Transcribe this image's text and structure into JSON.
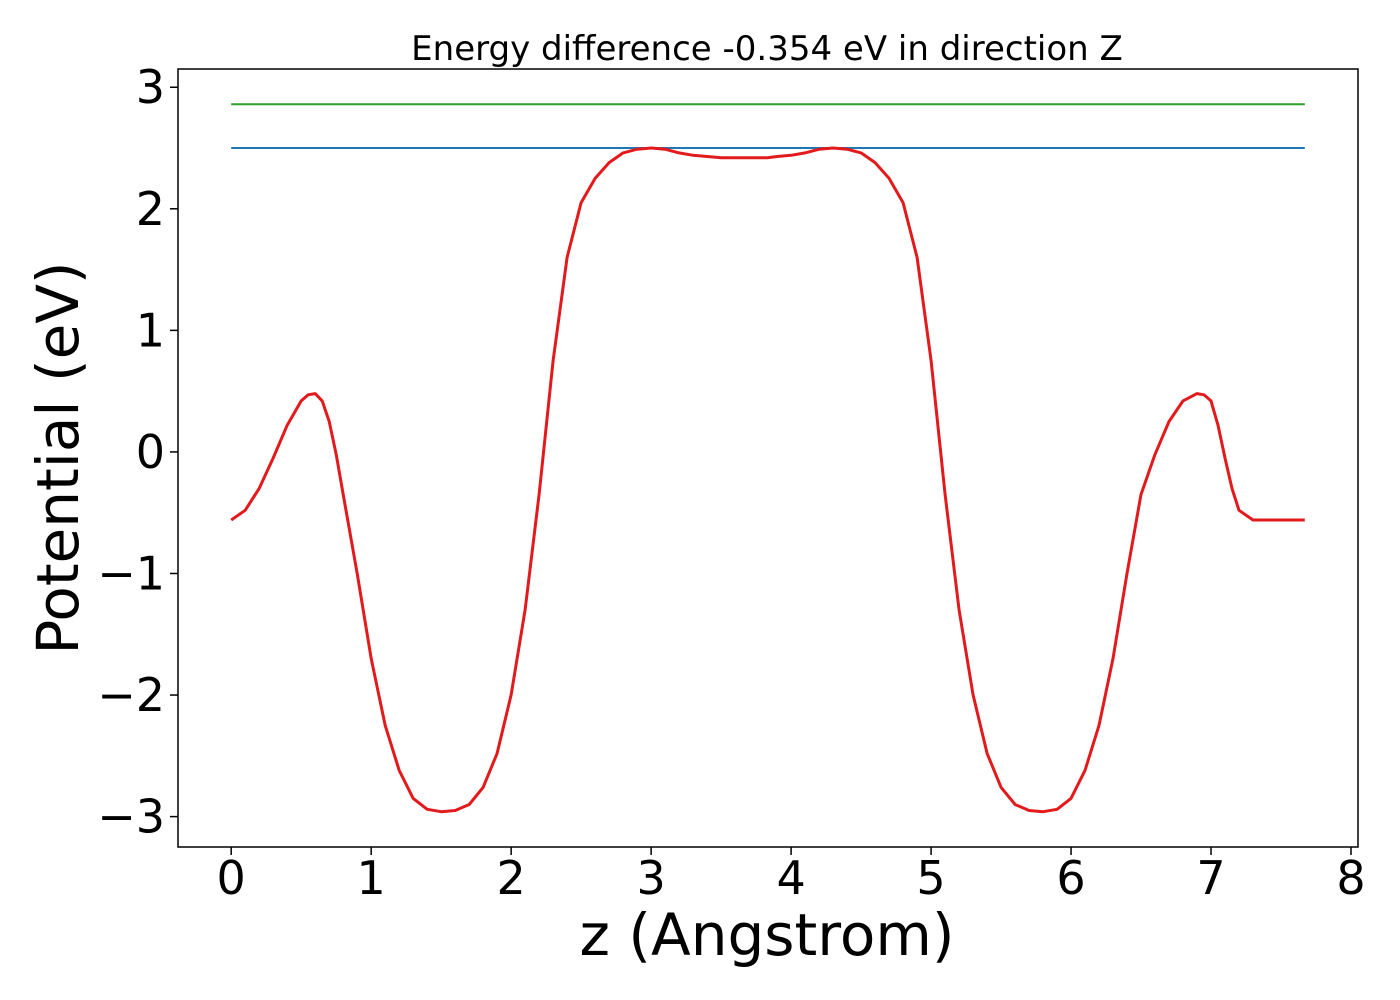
{
  "chart_data": {
    "type": "line",
    "title": "Energy difference -0.354 eV in direction Z",
    "xlabel": "z (Angstrom)",
    "ylabel": "Potential (eV)",
    "xlim": [
      -0.38,
      8.05
    ],
    "ylim": [
      -3.25,
      3.15
    ],
    "x_ticks": [
      0,
      1,
      2,
      3,
      4,
      5,
      6,
      7,
      8
    ],
    "x_tick_labels": [
      "0",
      "1",
      "2",
      "3",
      "4",
      "5",
      "6",
      "7",
      "8"
    ],
    "y_ticks": [
      3,
      2,
      1,
      0,
      -1,
      -2,
      -3
    ],
    "y_tick_labels": [
      "3",
      "2",
      "1",
      "0",
      "−1",
      "−2",
      "−3"
    ],
    "grid": false,
    "series": [
      {
        "color": "#2ca02c",
        "x": [
          0,
          7.67
        ],
        "y": [
          2.86,
          2.86
        ]
      },
      {
        "color": "#1f77b4",
        "x": [
          0,
          7.67
        ],
        "y": [
          2.5,
          2.5
        ]
      },
      {
        "color": "#e31a1c",
        "x": [
          0.0,
          0.1,
          0.2,
          0.3,
          0.4,
          0.5,
          0.55,
          0.6,
          0.65,
          0.7,
          0.75,
          0.8,
          0.9,
          1.0,
          1.1,
          1.2,
          1.3,
          1.4,
          1.5,
          1.6,
          1.7,
          1.8,
          1.9,
          2.0,
          2.1,
          2.2,
          2.3,
          2.4,
          2.5,
          2.6,
          2.7,
          2.8,
          2.9,
          3.0,
          3.1,
          3.2,
          3.3,
          3.4,
          3.5,
          3.6,
          3.7,
          3.8,
          3.83,
          3.9,
          4.0,
          4.1,
          4.2,
          4.3,
          4.4,
          4.5,
          4.6,
          4.7,
          4.8,
          4.9,
          5.0,
          5.1,
          5.2,
          5.3,
          5.4,
          5.5,
          5.6,
          5.7,
          5.8,
          5.9,
          6.0,
          6.1,
          6.2,
          6.3,
          6.4,
          6.5,
          6.6,
          6.7,
          6.8,
          6.9,
          6.95,
          7.0,
          7.05,
          7.1,
          7.15,
          7.2,
          7.3,
          7.4,
          7.5,
          7.6,
          7.67
        ],
        "y": [
          -0.56,
          -0.48,
          -0.3,
          -0.05,
          0.22,
          0.42,
          0.47,
          0.48,
          0.42,
          0.25,
          -0.02,
          -0.35,
          -1.0,
          -1.7,
          -2.25,
          -2.62,
          -2.85,
          -2.94,
          -2.96,
          -2.95,
          -2.9,
          -2.76,
          -2.48,
          -2.0,
          -1.3,
          -0.35,
          0.75,
          1.6,
          2.05,
          2.25,
          2.38,
          2.46,
          2.49,
          2.5,
          2.49,
          2.46,
          2.44,
          2.43,
          2.42,
          2.42,
          2.42,
          2.42,
          2.42,
          2.43,
          2.44,
          2.46,
          2.49,
          2.5,
          2.49,
          2.46,
          2.38,
          2.25,
          2.05,
          1.6,
          0.75,
          -0.35,
          -1.3,
          -2.0,
          -2.48,
          -2.76,
          -2.9,
          -2.95,
          -2.96,
          -2.94,
          -2.85,
          -2.62,
          -2.25,
          -1.7,
          -1.0,
          -0.35,
          -0.02,
          0.25,
          0.42,
          0.48,
          0.47,
          0.42,
          0.22,
          -0.05,
          -0.3,
          -0.48,
          -0.56,
          -0.56,
          -0.56,
          -0.56,
          -0.56
        ]
      }
    ]
  }
}
